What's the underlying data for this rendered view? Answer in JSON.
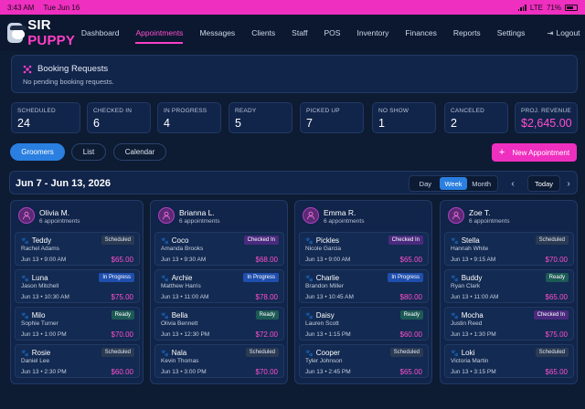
{
  "status_bar": {
    "time": "3:43 AM",
    "date": "Tue Jun 16",
    "network": "LTE",
    "battery": "71%",
    "battery_level": 0.71
  },
  "brand": {
    "part1": "SIR",
    "part2": "PUPPY"
  },
  "nav": {
    "items": [
      "Dashboard",
      "Appointments",
      "Messages",
      "Clients",
      "Staff",
      "POS",
      "Inventory",
      "Finances",
      "Reports",
      "Settings"
    ],
    "active": "Appointments",
    "logout": "Logout"
  },
  "booking": {
    "title": "Booking Requests",
    "subtitle": "No pending booking requests."
  },
  "stats": [
    {
      "label": "SCHEDULED",
      "value": "24"
    },
    {
      "label": "CHECKED IN",
      "value": "6"
    },
    {
      "label": "IN PROGRESS",
      "value": "4"
    },
    {
      "label": "READY",
      "value": "5"
    },
    {
      "label": "PICKED UP",
      "value": "7"
    },
    {
      "label": "NO SHOW",
      "value": "1"
    },
    {
      "label": "CANCELED",
      "value": "2"
    },
    {
      "label": "PROJ. REVENUE",
      "value": "$2,645.00"
    }
  ],
  "views": {
    "groomers": "Groomers",
    "list": "List",
    "calendar": "Calendar",
    "new": "New Appointment"
  },
  "range": {
    "label": "Jun 7 - Jun 13, 2026",
    "day": "Day",
    "week": "Week",
    "month": "Month",
    "today": "Today"
  },
  "colors": {
    "accent": "#ff3fc6",
    "primary": "#2a7fe0",
    "bg": "#0d1b33"
  },
  "groomers": [
    {
      "name": "Olivia M.",
      "count": "6 appointments",
      "appointments": [
        {
          "pet": "Teddy",
          "owner": "Rachel Adams",
          "time": "Jun 13 • 9:00 AM",
          "price": "$65.00",
          "status": "Scheduled",
          "status_class": "b-sch"
        },
        {
          "pet": "Luna",
          "owner": "Jason Mitchell",
          "time": "Jun 13 • 10:30 AM",
          "price": "$75.00",
          "status": "In Progress",
          "status_class": "b-inp"
        },
        {
          "pet": "Milo",
          "owner": "Sophie Turner",
          "time": "Jun 13 • 1:00 PM",
          "price": "$70.00",
          "status": "Ready",
          "status_class": "b-rdy"
        },
        {
          "pet": "Rosie",
          "owner": "Daniel Lee",
          "time": "Jun 13 • 2:30 PM",
          "price": "$60.00",
          "status": "Scheduled",
          "status_class": "b-sch"
        }
      ]
    },
    {
      "name": "Brianna L.",
      "count": "6 appointments",
      "appointments": [
        {
          "pet": "Coco",
          "owner": "Amanda Brooks",
          "time": "Jun 13 • 9:30 AM",
          "price": "$68.00",
          "status": "Checked In",
          "status_class": "b-chk"
        },
        {
          "pet": "Archie",
          "owner": "Matthew Harris",
          "time": "Jun 13 • 11:00 AM",
          "price": "$78.00",
          "status": "In Progress",
          "status_class": "b-inp"
        },
        {
          "pet": "Bella",
          "owner": "Olivia Bennett",
          "time": "Jun 13 • 12:30 PM",
          "price": "$72.00",
          "status": "Ready",
          "status_class": "b-rdy"
        },
        {
          "pet": "Nala",
          "owner": "Kevin Thomas",
          "time": "Jun 13 • 3:00 PM",
          "price": "$70.00",
          "status": "Scheduled",
          "status_class": "b-sch"
        }
      ]
    },
    {
      "name": "Emma R.",
      "count": "6 appointments",
      "appointments": [
        {
          "pet": "Pickles",
          "owner": "Nicole Garcia",
          "time": "Jun 13 • 9:00 AM",
          "price": "$65.00",
          "status": "Checked In",
          "status_class": "b-chk"
        },
        {
          "pet": "Charlie",
          "owner": "Brandon Miller",
          "time": "Jun 13 • 10:45 AM",
          "price": "$80.00",
          "status": "In Progress",
          "status_class": "b-inp"
        },
        {
          "pet": "Daisy",
          "owner": "Lauren Scott",
          "time": "Jun 13 • 1:15 PM",
          "price": "$60.00",
          "status": "Ready",
          "status_class": "b-rdy"
        },
        {
          "pet": "Cooper",
          "owner": "Tyler Johnson",
          "time": "Jun 13 • 2:45 PM",
          "price": "$65.00",
          "status": "Scheduled",
          "status_class": "b-sch"
        }
      ]
    },
    {
      "name": "Zoe T.",
      "count": "6 appointments",
      "appointments": [
        {
          "pet": "Stella",
          "owner": "Hannah White",
          "time": "Jun 13 • 9:15 AM",
          "price": "$70.00",
          "status": "Scheduled",
          "status_class": "b-sch"
        },
        {
          "pet": "Buddy",
          "owner": "Ryan Clark",
          "time": "Jun 13 • 11:00 AM",
          "price": "$65.00",
          "status": "Ready",
          "status_class": "b-rdy"
        },
        {
          "pet": "Mocha",
          "owner": "Justin Reed",
          "time": "Jun 13 • 1:30 PM",
          "price": "$75.00",
          "status": "Checked In",
          "status_class": "b-chk"
        },
        {
          "pet": "Loki",
          "owner": "Victoria Martin",
          "time": "Jun 13 • 3:15 PM",
          "price": "$65.00",
          "status": "Scheduled",
          "status_class": "b-sch"
        }
      ]
    }
  ]
}
